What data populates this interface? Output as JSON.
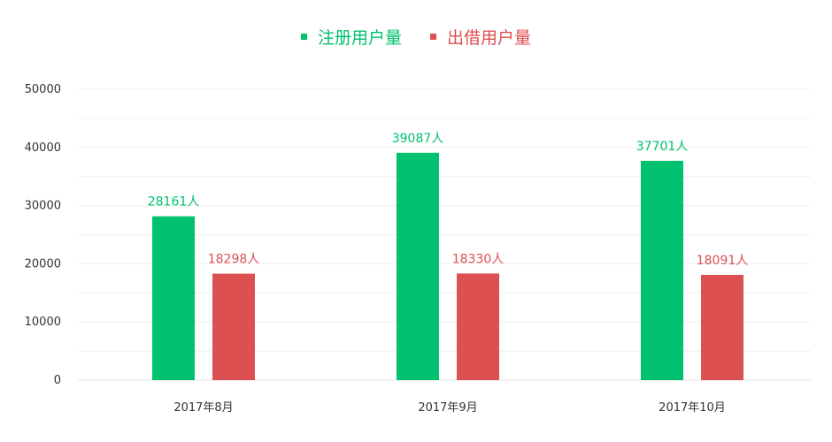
{
  "chart_data": {
    "type": "bar",
    "categories": [
      "2017年8月",
      "2017年9月",
      "2017年10月"
    ],
    "series": [
      {
        "name": "注册用户量",
        "color": "#00c16e",
        "values": [
          28161,
          39087,
          37701
        ],
        "labels": [
          "28161人",
          "39087人",
          "37701人"
        ]
      },
      {
        "name": "出借用户量",
        "color": "#dc5052",
        "values": [
          18298,
          18330,
          18091
        ],
        "labels": [
          "18298人",
          "18330人",
          "18091人"
        ]
      }
    ],
    "yticks": [
      "0",
      "10000",
      "20000",
      "30000",
      "40000",
      "50000"
    ],
    "ylim": [
      0,
      50000
    ],
    "grid": true,
    "legend_position": "top-center"
  }
}
